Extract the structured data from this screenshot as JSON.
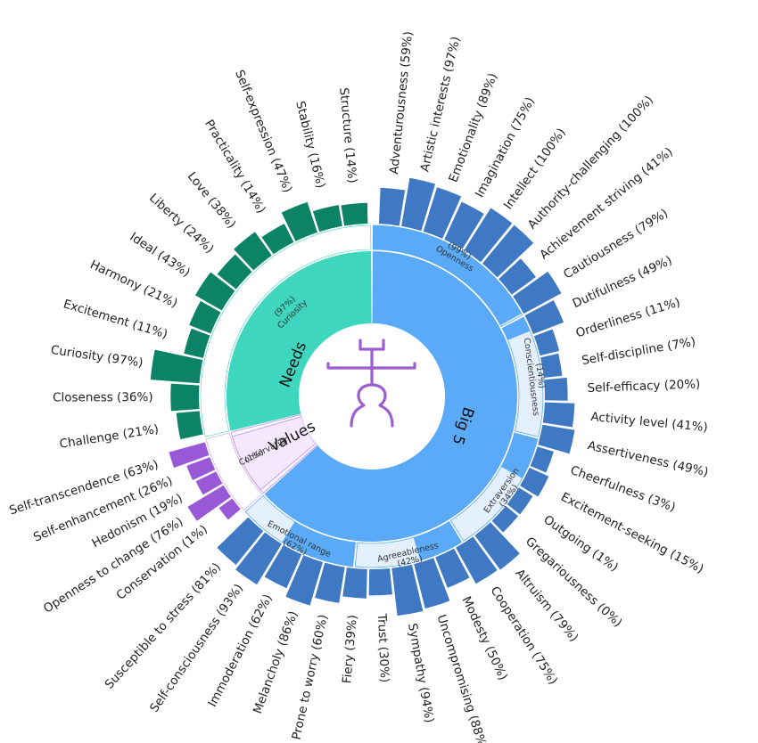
{
  "chart_data": {
    "type": "sunburst",
    "title": "",
    "colors": {
      "big5_main": "#5aaaf8",
      "big5_light": "#e4f0fd",
      "big5_outer": "#3f79c4",
      "needs_main": "#3fd6bf",
      "needs_outer": "#0c8367",
      "values_light": "#f3e8fd",
      "values_outer": "#9958d6",
      "icon": "#9a5fd0"
    },
    "categories": [
      {
        "name": "Big 5",
        "label_note": "Openness (99%)",
        "traits": [
          {
            "name": "Openness",
            "pct_label": "(99%)",
            "value": 99,
            "facets": [
              {
                "label": "Adventurousness (59%)",
                "value": 59
              },
              {
                "label": "Artistic interests (97%)",
                "value": 97
              },
              {
                "label": "Emotionality (89%)",
                "value": 89
              },
              {
                "label": "Imagination (75%)",
                "value": 75
              },
              {
                "label": "Intellect (100%)",
                "value": 100
              },
              {
                "label": "Authority-challenging (100%)",
                "value": 100
              }
            ]
          },
          {
            "name": "Conscientiousness",
            "pct_label": "(14%)",
            "value": 14,
            "facets": [
              {
                "label": "Achievement striving (41%)",
                "value": 41
              },
              {
                "label": "Cautiousness (79%)",
                "value": 79
              },
              {
                "label": "Dutifulness (49%)",
                "value": 49
              },
              {
                "label": "Orderliness (11%)",
                "value": 11
              },
              {
                "label": "Self-discipline (7%)",
                "value": 7
              },
              {
                "label": "Self-efficacy (20%)",
                "value": 20
              }
            ]
          },
          {
            "name": "Extraversion",
            "pct_label": "(34%)",
            "value": 34,
            "facets": [
              {
                "label": "Activity level (41%)",
                "value": 41
              },
              {
                "label": "Assertiveness (49%)",
                "value": 49
              },
              {
                "label": "Cheerfulness (3%)",
                "value": 3
              },
              {
                "label": "Excitement-seeking (15%)",
                "value": 15
              },
              {
                "label": "Outgoing (1%)",
                "value": 1
              },
              {
                "label": "Gregariousness (0%)",
                "value": 0
              }
            ]
          },
          {
            "name": "Agreeableness",
            "pct_label": "(42%)",
            "value": 42,
            "facets": [
              {
                "label": "Altruism (79%)",
                "value": 79
              },
              {
                "label": "Cooperation (75%)",
                "value": 75
              },
              {
                "label": "Modesty (50%)",
                "value": 50
              },
              {
                "label": "Uncompromising (88%)",
                "value": 88
              },
              {
                "label": "Sympathy (94%)",
                "value": 94
              },
              {
                "label": "Trust (30%)",
                "value": 30
              }
            ]
          },
          {
            "name": "Emotional range",
            "pct_label": "(62%)",
            "value": 62,
            "facets": [
              {
                "label": "Fiery (39%)",
                "value": 39
              },
              {
                "label": "Prone to worry (60%)",
                "value": 60
              },
              {
                "label": "Melancholy (86%)",
                "value": 86
              },
              {
                "label": "Immoderation (62%)",
                "value": 62
              },
              {
                "label": "Self-consciousness (93%)",
                "value": 93
              },
              {
                "label": "Susceptible to stress (81%)",
                "value": 81
              }
            ]
          }
        ]
      },
      {
        "name": "Values",
        "label_note": "",
        "traits": [
          {
            "name": "Conservation",
            "pct_label": "(1%)",
            "value": 1,
            "facets": [
              {
                "label": "Conservation (1%)",
                "value": 1
              },
              {
                "label": "Openness to change (76%)",
                "value": 76
              },
              {
                "label": "Hedonism (19%)",
                "value": 19
              },
              {
                "label": "Self-enhancement (26%)",
                "value": 26
              },
              {
                "label": "Self-transcendence (63%)",
                "value": 63
              }
            ]
          }
        ]
      },
      {
        "name": "Needs",
        "label_note": "",
        "traits": [
          {
            "name": "Curiosity",
            "pct_label": "(97%)",
            "value": 97,
            "facets": [
              {
                "label": "Challenge (21%)",
                "value": 21
              },
              {
                "label": "Closeness (36%)",
                "value": 36
              },
              {
                "label": "Curiosity (97%)",
                "value": 97
              },
              {
                "label": "Excitement (11%)",
                "value": 11
              },
              {
                "label": "Harmony (21%)",
                "value": 21
              },
              {
                "label": "Ideal (43%)",
                "value": 43
              },
              {
                "label": "Liberty (24%)",
                "value": 24
              },
              {
                "label": "Love (38%)",
                "value": 38
              },
              {
                "label": "Practicality (14%)",
                "value": 14
              },
              {
                "label": "Self-expression (47%)",
                "value": 47
              },
              {
                "label": "Stability (16%)",
                "value": 16
              },
              {
                "label": "Structure (14%)",
                "value": 14
              }
            ]
          }
        ]
      }
    ]
  }
}
